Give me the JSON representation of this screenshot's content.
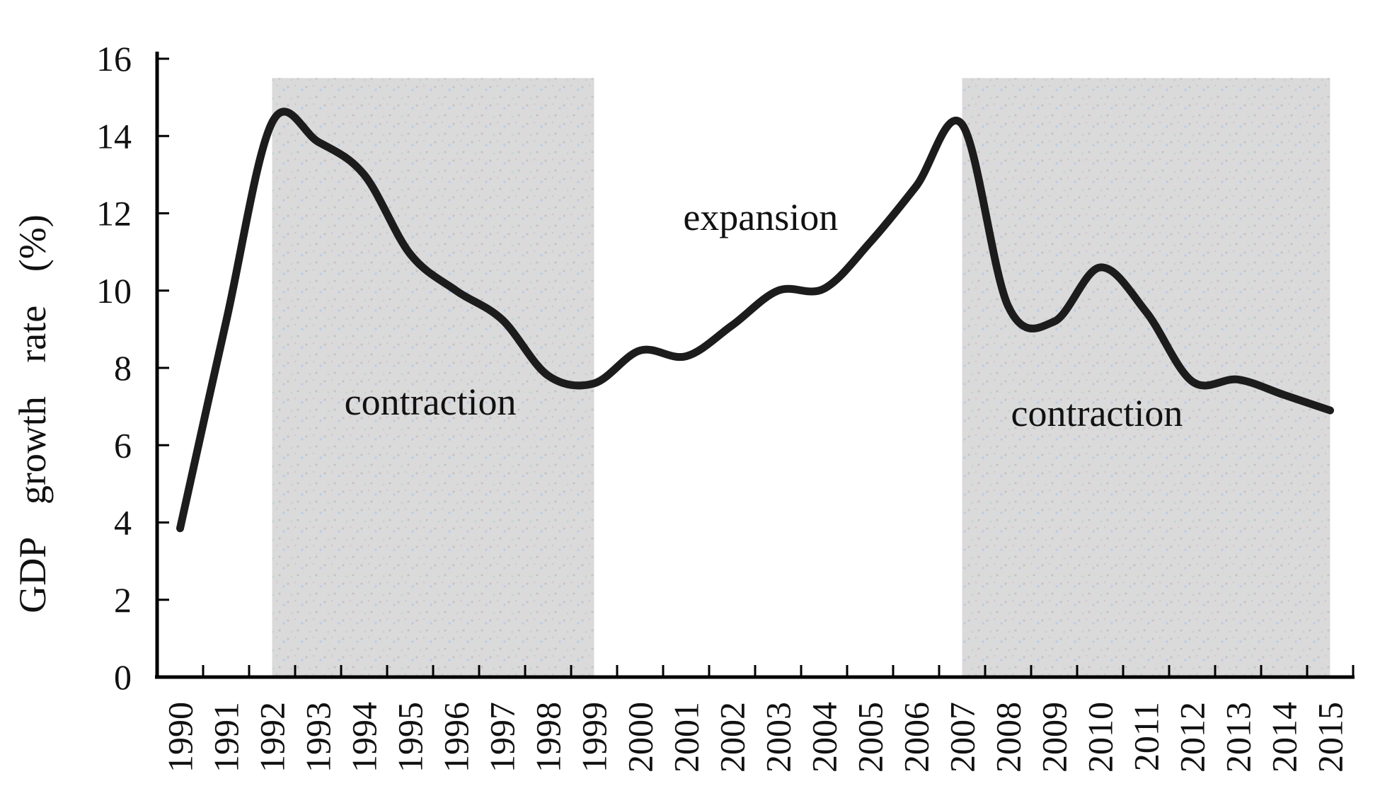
{
  "chart_data": {
    "type": "line",
    "title": "",
    "xlabel": "",
    "ylabel": "GDP growth rate (%)",
    "ylim": [
      0,
      16
    ],
    "y_ticks": [
      "0",
      "2",
      "4",
      "6",
      "8",
      "10",
      "12",
      "14",
      "16"
    ],
    "grid": false,
    "legend": "none",
    "line_color": "#1c1c1c",
    "shading_color": "#dadada",
    "categories": [
      "1990",
      "1991",
      "1992",
      "1993",
      "1994",
      "1995",
      "1996",
      "1997",
      "1998",
      "1999",
      "2000",
      "2001",
      "2002",
      "2003",
      "2004",
      "2005",
      "2006",
      "2007",
      "2008",
      "2009",
      "2010",
      "2011",
      "2012",
      "2013",
      "2014",
      "2015"
    ],
    "series": [
      {
        "name": "GDP growth rate",
        "values": [
          3.85,
          9.2,
          14.35,
          13.85,
          13.0,
          10.95,
          10.0,
          9.25,
          7.8,
          7.6,
          8.45,
          8.3,
          9.1,
          10.0,
          10.05,
          11.25,
          12.7,
          14.3,
          9.6,
          9.2,
          10.6,
          9.45,
          7.65,
          7.7,
          7.3,
          6.9
        ]
      }
    ],
    "shaded_regions": [
      {
        "label": "contraction",
        "from_year": "1992",
        "to_year": "1999",
        "from_index": 2,
        "to_index": 9,
        "top_value": 15.5
      },
      {
        "label": "contraction",
        "from_year": "2007",
        "to_year": "2015",
        "from_index": 17,
        "to_index": 25,
        "top_value": 15.5
      }
    ],
    "annotations": [
      {
        "text": "contraction",
        "x_index": 5.44,
        "y_value": 7.14
      },
      {
        "text": "expansion",
        "x_index": 12.62,
        "y_value": 11.92
      },
      {
        "text": "contraction",
        "x_index": 19.93,
        "y_value": 6.85
      }
    ]
  }
}
